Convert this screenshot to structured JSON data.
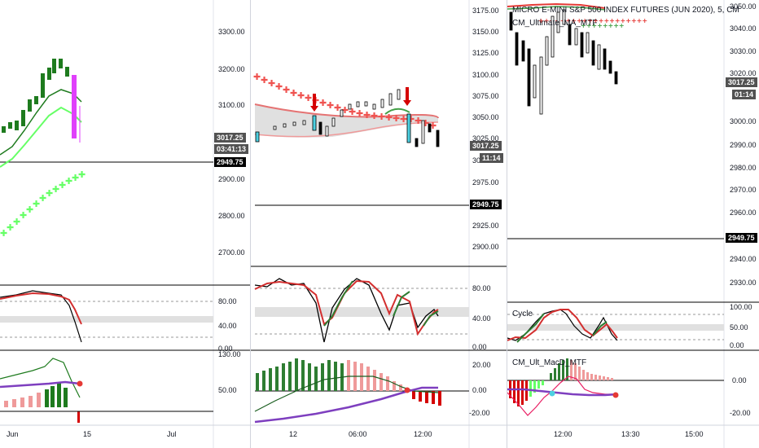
{
  "colors": {
    "up": "#1e7b1e",
    "down": "#c62828",
    "magenta": "#e040fb",
    "cyan": "#4dd0e1",
    "bright_green": "#66ff66",
    "purple": "#7e3fbf",
    "pink_bar": "#ef9a9a",
    "grid": "#d1d4dc"
  },
  "pane1": {
    "price_ticks": [
      "3300.00",
      "3200.00",
      "3100.00",
      "2900.00",
      "2800.00",
      "2700.00"
    ],
    "price_tag": "3017.25",
    "countdown_tag": "03:41:13",
    "level_tag": "2949.75",
    "osc_ticks": [
      "80.00",
      "40.00",
      "0.00"
    ],
    "macd_ticks": [
      "130.00",
      "50.00"
    ],
    "time_ticks": [
      "Jun",
      "15",
      "Jul"
    ]
  },
  "pane2": {
    "price_ticks": [
      "3175.00",
      "3150.00",
      "3125.00",
      "3100.00",
      "3075.00",
      "3050.00",
      "3025.00",
      "3000.00",
      "2975.00",
      "2950.00",
      "2925.00",
      "2900.00"
    ],
    "price_tag": "3017.25",
    "countdown_tag": "11:14",
    "level_tag": "2949.75",
    "osc_ticks": [
      "80.00",
      "40.00",
      "0.00"
    ],
    "macd_ticks": [
      "20.00",
      "0.00",
      "-20.00"
    ],
    "time_ticks": [
      "12",
      "06:00",
      "12:00"
    ]
  },
  "pane3": {
    "title_main": "MICRO E-MINI S&P 500 INDEX FUTURES (JUN 2020), 5, CM",
    "title_sub": "CM_Ultimate_MA_MTF",
    "cycle_label": "Cycle",
    "macd_label": "CM_Ult_MacD_MTF",
    "price_ticks": [
      "3050.00",
      "3040.00",
      "3030.00",
      "3020.00",
      "3010.00",
      "3000.00",
      "2990.00",
      "2980.00",
      "2970.00",
      "2960.00",
      "2950.00",
      "2940.00",
      "2930.00"
    ],
    "price_tag": "3017.25",
    "countdown_tag": "01:14",
    "level_tag": "2949.75",
    "osc_ticks": [
      "100.00",
      "50.00",
      "0.00"
    ],
    "macd_ticks": [
      "0.00",
      "-20.00"
    ],
    "time_ticks": [
      "12:00",
      "13:30",
      "15:00"
    ]
  }
}
